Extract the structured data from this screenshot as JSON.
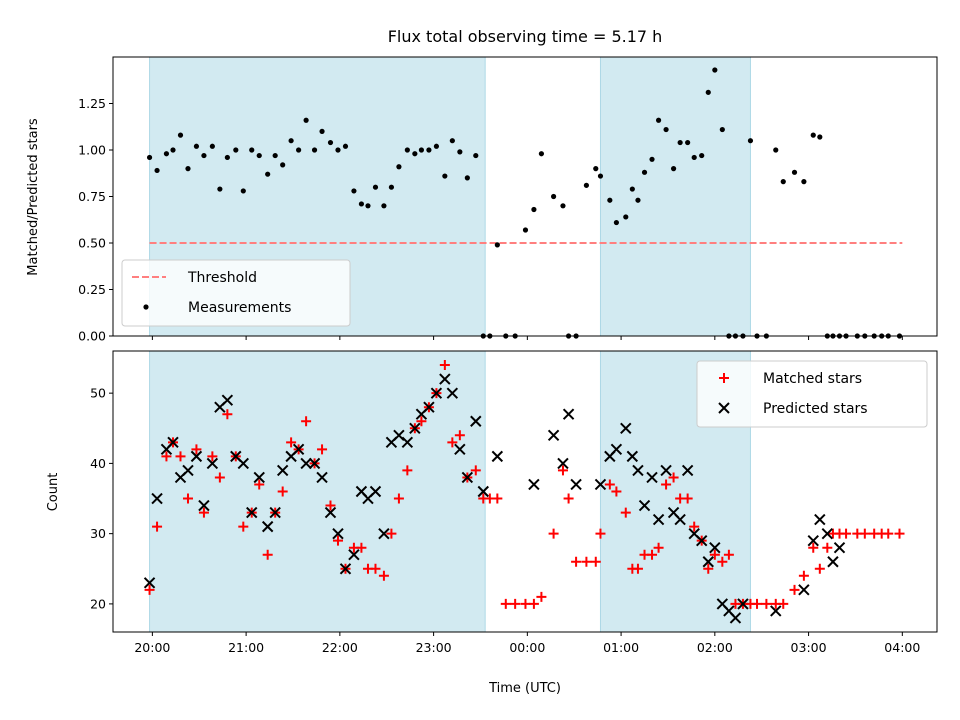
{
  "chart_data": {
    "title": "Flux total observing time = 5.17 h",
    "xlabel": "Time (UTC)",
    "x_ticks": [
      "20:00",
      "21:00",
      "22:00",
      "23:00",
      "00:00",
      "01:00",
      "02:00",
      "03:00",
      "04:00"
    ],
    "x_unit": "hours since 20:00 UTC",
    "x_range": [
      -0.42,
      8.37
    ],
    "shaded_intervals": [
      [
        -0.03,
        3.55
      ],
      [
        4.78,
        6.38
      ]
    ],
    "shade_color": "#add8e6",
    "panels": [
      {
        "type": "scatter",
        "ylabel": "Matched/Predicted stars",
        "ylim": [
          0,
          1.5
        ],
        "y_ticks": [
          "0.00",
          "0.25",
          "0.50",
          "0.75",
          "1.00",
          "1.25"
        ],
        "legend": {
          "placement": "lower-left",
          "entries": [
            "Threshold",
            "Measurements"
          ]
        },
        "series": [
          {
            "name": "Threshold",
            "kind": "dashed-line",
            "color": "#ff7f7f",
            "x": [
              -0.03,
              8.0
            ],
            "y": [
              0.5,
              0.5
            ]
          },
          {
            "name": "Measurements",
            "kind": "dot",
            "color": "#000000",
            "x": [
              -0.03,
              0.05,
              0.15,
              0.22,
              0.3,
              0.38,
              0.47,
              0.55,
              0.64,
              0.72,
              0.8,
              0.89,
              0.97,
              1.06,
              1.14,
              1.23,
              1.31,
              1.39,
              1.48,
              1.56,
              1.64,
              1.73,
              1.81,
              1.9,
              1.98,
              2.06,
              2.15,
              2.23,
              2.3,
              2.38,
              2.47,
              2.55,
              2.63,
              2.72,
              2.8,
              2.87,
              2.95,
              3.03,
              3.12,
              3.2,
              3.28,
              3.36,
              3.45,
              3.53,
              3.6,
              3.68,
              3.77,
              3.87,
              3.98,
              4.07,
              4.15,
              4.28,
              4.38,
              4.44,
              4.52,
              4.63,
              4.73,
              4.78,
              4.88,
              4.95,
              5.05,
              5.12,
              5.18,
              5.25,
              5.33,
              5.4,
              5.48,
              5.56,
              5.63,
              5.71,
              5.78,
              5.86,
              5.93,
              6.0,
              6.08,
              6.15,
              6.22,
              6.3,
              6.38,
              6.45,
              6.55,
              6.65,
              6.73,
              6.85,
              6.95,
              7.05,
              7.12,
              7.2,
              7.26,
              7.33,
              7.4,
              7.52,
              7.6,
              7.7,
              7.78,
              7.85,
              7.97
            ],
            "y": [
              0.96,
              0.89,
              0.98,
              1.0,
              1.08,
              0.9,
              1.02,
              0.97,
              1.02,
              0.79,
              0.96,
              1.0,
              0.78,
              1.0,
              0.97,
              0.87,
              0.97,
              0.92,
              1.05,
              1.0,
              1.16,
              1.0,
              1.1,
              1.04,
              1.0,
              1.02,
              0.78,
              0.71,
              0.7,
              0.8,
              0.7,
              0.8,
              0.91,
              1.0,
              0.98,
              1.0,
              1.0,
              1.02,
              0.86,
              1.05,
              0.99,
              0.85,
              0.97,
              0.0,
              0.0,
              0.49,
              0.0,
              0.0,
              0.57,
              0.68,
              0.98,
              0.75,
              0.7,
              0.0,
              0.0,
              0.81,
              0.9,
              0.86,
              0.73,
              0.61,
              0.64,
              0.79,
              0.73,
              0.88,
              0.95,
              1.16,
              1.11,
              0.9,
              1.04,
              1.04,
              0.96,
              0.97,
              1.31,
              1.43,
              1.11,
              0.0,
              0.0,
              0.0,
              1.05,
              0.0,
              0.0,
              1.0,
              0.83,
              0.88,
              0.83,
              1.08,
              1.07,
              0.0,
              0.0,
              0.0,
              0.0,
              0.0,
              0.0,
              0.0,
              0.0,
              0.0,
              0.0
            ]
          }
        ]
      },
      {
        "type": "scatter",
        "ylabel": "Count",
        "ylim": [
          16,
          56
        ],
        "y_ticks": [
          "20",
          "30",
          "40",
          "50"
        ],
        "legend": {
          "placement": "upper-right",
          "entries": [
            "Matched stars",
            "Predicted stars"
          ]
        },
        "series": [
          {
            "name": "Matched stars",
            "marker": "plus",
            "color": "#ff0000",
            "x": [
              -0.03,
              0.05,
              0.15,
              0.22,
              0.3,
              0.38,
              0.47,
              0.55,
              0.64,
              0.72,
              0.8,
              0.89,
              0.97,
              1.06,
              1.14,
              1.23,
              1.31,
              1.39,
              1.48,
              1.56,
              1.64,
              1.73,
              1.81,
              1.9,
              1.98,
              2.06,
              2.15,
              2.23,
              2.3,
              2.38,
              2.47,
              2.55,
              2.63,
              2.72,
              2.8,
              2.87,
              2.95,
              3.03,
              3.12,
              3.2,
              3.28,
              3.36,
              3.45,
              3.53,
              3.6,
              3.68,
              3.77,
              3.87,
              3.98,
              4.07,
              4.15,
              4.28,
              4.38,
              4.44,
              4.52,
              4.63,
              4.73,
              4.78,
              4.88,
              4.95,
              5.05,
              5.12,
              5.18,
              5.25,
              5.33,
              5.4,
              5.48,
              5.56,
              5.63,
              5.71,
              5.78,
              5.86,
              5.93,
              6.0,
              6.08,
              6.15,
              6.22,
              6.3,
              6.38,
              6.45,
              6.55,
              6.65,
              6.73,
              6.85,
              6.95,
              7.05,
              7.12,
              7.2,
              7.26,
              7.33,
              7.4,
              7.52,
              7.6,
              7.7,
              7.78,
              7.85,
              7.97
            ],
            "y": [
              22,
              31,
              41,
              43,
              41,
              35,
              42,
              33,
              41,
              38,
              47,
              41,
              31,
              33,
              37,
              27,
              33,
              36,
              43,
              42,
              46,
              40,
              42,
              34,
              29,
              25,
              28,
              28,
              25,
              25,
              24,
              30,
              35,
              39,
              45,
              46,
              48,
              50,
              54,
              43,
              44,
              38,
              39,
              35,
              35,
              35,
              20,
              20,
              20,
              20,
              21,
              30,
              39,
              35,
              26,
              26,
              26,
              30,
              37,
              36,
              33,
              25,
              25,
              27,
              27,
              28,
              37,
              38,
              35,
              35,
              31,
              29,
              25,
              27,
              26,
              27,
              20,
              20,
              20,
              20,
              20,
              20,
              20,
              22,
              24,
              28,
              25,
              28,
              30,
              30,
              30,
              30,
              30,
              30,
              30,
              30,
              30
            ]
          },
          {
            "name": "Predicted stars",
            "marker": "x",
            "color": "#000000",
            "x": [
              -0.03,
              0.05,
              0.15,
              0.22,
              0.3,
              0.38,
              0.47,
              0.55,
              0.64,
              0.72,
              0.8,
              0.89,
              0.97,
              1.06,
              1.14,
              1.23,
              1.31,
              1.39,
              1.48,
              1.56,
              1.64,
              1.73,
              1.81,
              1.9,
              1.98,
              2.06,
              2.15,
              2.23,
              2.3,
              2.38,
              2.47,
              2.55,
              2.63,
              2.72,
              2.8,
              2.87,
              2.95,
              3.03,
              3.12,
              3.2,
              3.28,
              3.36,
              3.45,
              3.53,
              3.68,
              4.07,
              4.28,
              4.38,
              4.44,
              4.52,
              4.78,
              4.88,
              4.95,
              5.05,
              5.12,
              5.18,
              5.25,
              5.33,
              5.4,
              5.48,
              5.56,
              5.63,
              5.71,
              5.78,
              5.86,
              5.93,
              6.0,
              6.08,
              6.15,
              6.22,
              6.3,
              6.65,
              6.95,
              7.05,
              7.12,
              7.2,
              7.26,
              7.33
            ],
            "y": [
              23,
              35,
              42,
              43,
              38,
              39,
              41,
              34,
              40,
              48,
              49,
              41,
              40,
              33,
              38,
              31,
              33,
              39,
              41,
              42,
              40,
              40,
              38,
              33,
              30,
              25,
              27,
              36,
              35,
              36,
              30,
              43,
              44,
              43,
              45,
              47,
              48,
              50,
              52,
              50,
              42,
              38,
              46,
              36,
              41,
              37,
              44,
              40,
              47,
              37,
              37,
              41,
              42,
              45,
              41,
              39,
              34,
              38,
              32,
              39,
              33,
              32,
              39,
              30,
              29,
              26,
              28,
              20,
              19,
              18,
              20,
              19,
              22,
              29,
              32,
              30,
              26,
              28
            ]
          }
        ]
      }
    ]
  }
}
